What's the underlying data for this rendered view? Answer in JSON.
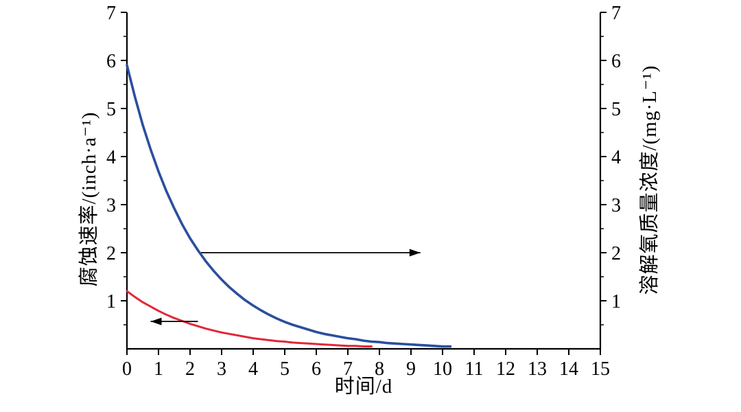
{
  "chart_data": {
    "type": "line",
    "title": "",
    "xlabel": "时间/d",
    "ylabel_left": "腐蚀速率/(inch·a⁻¹)",
    "ylabel_right": "溶解氧质量浓度/(mg·L⁻¹)",
    "xlim": [
      0,
      15
    ],
    "ylim_left": [
      0,
      7
    ],
    "ylim_right": [
      0,
      7
    ],
    "x_ticks": [
      0,
      1,
      2,
      3,
      4,
      5,
      6,
      7,
      8,
      9,
      10,
      11,
      12,
      13,
      14,
      15
    ],
    "y_ticks_left": [
      1,
      2,
      3,
      4,
      5,
      6,
      7
    ],
    "y_ticks_right": [
      1,
      2,
      3,
      4,
      5,
      6,
      7
    ],
    "minor_tick_step": 0.5,
    "grid": false,
    "legend": "none",
    "axis_color": "#000000",
    "series": [
      {
        "name": "溶解氧质量浓度 (right axis, blue)",
        "axis": "right",
        "color": "#2a4f9e",
        "x": [
          0,
          0.25,
          0.5,
          0.75,
          1,
          1.25,
          1.5,
          1.75,
          2,
          2.25,
          2.5,
          2.75,
          3,
          3.25,
          3.5,
          3.75,
          4,
          4.25,
          4.5,
          4.75,
          5,
          5.25,
          5.5,
          5.75,
          6,
          6.25,
          6.5,
          6.75,
          7,
          7.25,
          7.5,
          7.75,
          8,
          8.25,
          8.5,
          8.75,
          9,
          9.25,
          9.5,
          9.75,
          10,
          10.25
        ],
        "y": [
          5.9,
          5.25,
          4.66,
          4.15,
          3.69,
          3.28,
          2.92,
          2.59,
          2.3,
          2.05,
          1.82,
          1.62,
          1.44,
          1.28,
          1.14,
          1.01,
          0.9,
          0.8,
          0.71,
          0.63,
          0.56,
          0.5,
          0.45,
          0.4,
          0.35,
          0.31,
          0.28,
          0.25,
          0.22,
          0.2,
          0.17,
          0.15,
          0.14,
          0.12,
          0.11,
          0.1,
          0.09,
          0.08,
          0.07,
          0.06,
          0.05,
          0.05
        ]
      },
      {
        "name": "腐蚀速率 (left axis, red)",
        "axis": "left",
        "color": "#e32636",
        "x": [
          0,
          0.25,
          0.5,
          0.75,
          1,
          1.25,
          1.5,
          1.75,
          2,
          2.25,
          2.5,
          2.75,
          3,
          3.25,
          3.5,
          3.75,
          4,
          4.25,
          4.5,
          4.75,
          5,
          5.25,
          5.5,
          5.75,
          6,
          6.25,
          6.5,
          6.75,
          7,
          7.25,
          7.5,
          7.75
        ],
        "y": [
          1.2,
          1.08,
          0.97,
          0.88,
          0.79,
          0.71,
          0.64,
          0.58,
          0.52,
          0.47,
          0.42,
          0.38,
          0.34,
          0.31,
          0.28,
          0.25,
          0.22,
          0.2,
          0.18,
          0.16,
          0.15,
          0.13,
          0.12,
          0.11,
          0.1,
          0.09,
          0.08,
          0.07,
          0.06,
          0.06,
          0.05,
          0.05
        ]
      }
    ],
    "annotations": [
      {
        "type": "arrow",
        "direction": "right",
        "refers_to": "right-axis",
        "y": 2.0,
        "x_start": 2.35,
        "x_end": 9.3
      },
      {
        "type": "arrow",
        "direction": "left",
        "refers_to": "left-axis",
        "y": 0.57,
        "x_start": 2.25,
        "x_end": 0.75
      }
    ]
  }
}
